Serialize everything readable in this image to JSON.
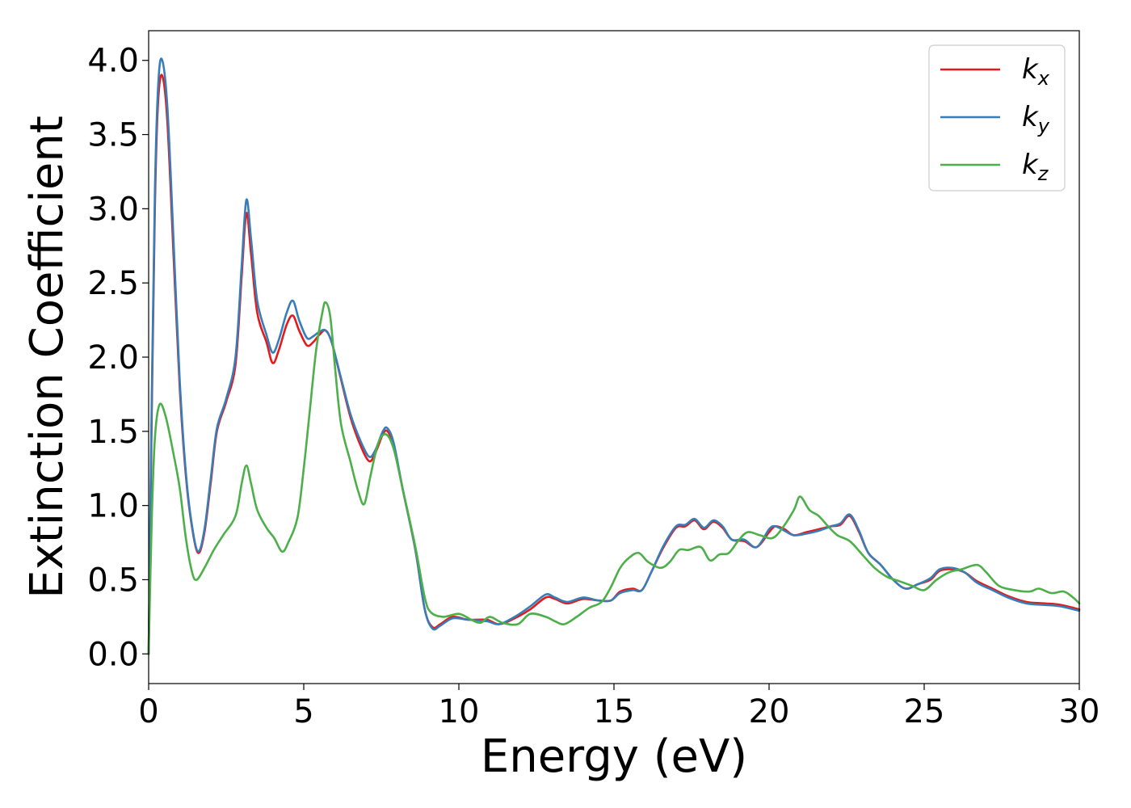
{
  "chart_data": {
    "type": "line",
    "title": "",
    "xlabel": "Energy (eV)",
    "ylabel": "Extinction Coefficient",
    "xlim": [
      0,
      30
    ],
    "ylim": [
      -0.2,
      4.2
    ],
    "xticks": [
      0,
      5,
      10,
      15,
      20,
      25,
      30
    ],
    "xtick_labels": [
      "0",
      "5",
      "10",
      "15",
      "20",
      "25",
      "30"
    ],
    "yticks": [
      0.0,
      0.5,
      1.0,
      1.5,
      2.0,
      2.5,
      3.0,
      3.5,
      4.0
    ],
    "ytick_labels": [
      "0.0",
      "0.5",
      "1.0",
      "1.5",
      "2.0",
      "2.5",
      "3.0",
      "3.5",
      "4.0"
    ],
    "grid": false,
    "legend_position": "top-right",
    "series": [
      {
        "name": "k_x",
        "label_base": "k",
        "label_sub": "x",
        "color": "#e41a1c",
        "points": [
          [
            0.0,
            0.0
          ],
          [
            0.1,
            1.6
          ],
          [
            0.2,
            3.0
          ],
          [
            0.3,
            3.7
          ],
          [
            0.43,
            3.9
          ],
          [
            0.6,
            3.6
          ],
          [
            0.8,
            2.7
          ],
          [
            1.0,
            1.8
          ],
          [
            1.2,
            1.2
          ],
          [
            1.4,
            0.85
          ],
          [
            1.6,
            0.68
          ],
          [
            1.8,
            0.82
          ],
          [
            2.0,
            1.15
          ],
          [
            2.2,
            1.5
          ],
          [
            2.5,
            1.7
          ],
          [
            2.8,
            1.95
          ],
          [
            3.0,
            2.55
          ],
          [
            3.15,
            2.97
          ],
          [
            3.3,
            2.7
          ],
          [
            3.5,
            2.3
          ],
          [
            3.8,
            2.1
          ],
          [
            4.0,
            1.96
          ],
          [
            4.2,
            2.05
          ],
          [
            4.45,
            2.22
          ],
          [
            4.65,
            2.28
          ],
          [
            4.85,
            2.18
          ],
          [
            5.1,
            2.08
          ],
          [
            5.3,
            2.1
          ],
          [
            5.5,
            2.15
          ],
          [
            5.7,
            2.18
          ],
          [
            5.9,
            2.1
          ],
          [
            6.2,
            1.85
          ],
          [
            6.5,
            1.6
          ],
          [
            6.8,
            1.42
          ],
          [
            7.1,
            1.3
          ],
          [
            7.3,
            1.35
          ],
          [
            7.55,
            1.48
          ],
          [
            7.7,
            1.5
          ],
          [
            7.9,
            1.4
          ],
          [
            8.2,
            1.1
          ],
          [
            8.6,
            0.7
          ],
          [
            8.9,
            0.3
          ],
          [
            9.15,
            0.18
          ],
          [
            9.4,
            0.2
          ],
          [
            9.8,
            0.25
          ],
          [
            10.3,
            0.23
          ],
          [
            10.9,
            0.23
          ],
          [
            11.3,
            0.2
          ],
          [
            11.8,
            0.24
          ],
          [
            12.3,
            0.3
          ],
          [
            12.8,
            0.38
          ],
          [
            13.1,
            0.37
          ],
          [
            13.5,
            0.34
          ],
          [
            14.0,
            0.37
          ],
          [
            14.5,
            0.36
          ],
          [
            14.9,
            0.36
          ],
          [
            15.2,
            0.42
          ],
          [
            15.6,
            0.44
          ],
          [
            15.9,
            0.43
          ],
          [
            16.2,
            0.55
          ],
          [
            16.6,
            0.72
          ],
          [
            17.0,
            0.85
          ],
          [
            17.3,
            0.86
          ],
          [
            17.6,
            0.9
          ],
          [
            17.9,
            0.84
          ],
          [
            18.2,
            0.89
          ],
          [
            18.5,
            0.85
          ],
          [
            18.8,
            0.77
          ],
          [
            19.2,
            0.76
          ],
          [
            19.6,
            0.72
          ],
          [
            20.0,
            0.82
          ],
          [
            20.2,
            0.86
          ],
          [
            20.5,
            0.84
          ],
          [
            20.8,
            0.8
          ],
          [
            21.2,
            0.82
          ],
          [
            21.6,
            0.84
          ],
          [
            22.0,
            0.86
          ],
          [
            22.3,
            0.87
          ],
          [
            22.6,
            0.93
          ],
          [
            22.9,
            0.82
          ],
          [
            23.2,
            0.68
          ],
          [
            23.6,
            0.6
          ],
          [
            24.0,
            0.5
          ],
          [
            24.4,
            0.44
          ],
          [
            24.8,
            0.47
          ],
          [
            25.2,
            0.5
          ],
          [
            25.5,
            0.56
          ],
          [
            25.9,
            0.57
          ],
          [
            26.3,
            0.55
          ],
          [
            26.7,
            0.49
          ],
          [
            27.2,
            0.44
          ],
          [
            27.7,
            0.39
          ],
          [
            28.3,
            0.35
          ],
          [
            28.9,
            0.34
          ],
          [
            29.4,
            0.33
          ],
          [
            30.0,
            0.3
          ]
        ]
      },
      {
        "name": "k_y",
        "label_base": "k",
        "label_sub": "y",
        "color": "#377eb8",
        "points": [
          [
            0.0,
            0.0
          ],
          [
            0.1,
            1.7
          ],
          [
            0.2,
            3.1
          ],
          [
            0.3,
            3.8
          ],
          [
            0.42,
            4.01
          ],
          [
            0.6,
            3.7
          ],
          [
            0.8,
            2.8
          ],
          [
            1.0,
            1.85
          ],
          [
            1.2,
            1.22
          ],
          [
            1.4,
            0.86
          ],
          [
            1.6,
            0.69
          ],
          [
            1.8,
            0.84
          ],
          [
            2.0,
            1.18
          ],
          [
            2.2,
            1.52
          ],
          [
            2.5,
            1.72
          ],
          [
            2.8,
            2.0
          ],
          [
            3.0,
            2.62
          ],
          [
            3.15,
            3.06
          ],
          [
            3.3,
            2.8
          ],
          [
            3.5,
            2.38
          ],
          [
            3.8,
            2.15
          ],
          [
            4.0,
            2.03
          ],
          [
            4.2,
            2.12
          ],
          [
            4.45,
            2.3
          ],
          [
            4.65,
            2.38
          ],
          [
            4.85,
            2.25
          ],
          [
            5.1,
            2.13
          ],
          [
            5.3,
            2.14
          ],
          [
            5.5,
            2.17
          ],
          [
            5.7,
            2.18
          ],
          [
            5.9,
            2.1
          ],
          [
            6.2,
            1.86
          ],
          [
            6.5,
            1.62
          ],
          [
            6.8,
            1.45
          ],
          [
            7.1,
            1.33
          ],
          [
            7.3,
            1.37
          ],
          [
            7.55,
            1.5
          ],
          [
            7.7,
            1.52
          ],
          [
            7.9,
            1.42
          ],
          [
            8.2,
            1.1
          ],
          [
            8.6,
            0.7
          ],
          [
            8.9,
            0.3
          ],
          [
            9.15,
            0.17
          ],
          [
            9.4,
            0.19
          ],
          [
            9.8,
            0.24
          ],
          [
            10.3,
            0.23
          ],
          [
            10.9,
            0.22
          ],
          [
            11.3,
            0.2
          ],
          [
            11.8,
            0.25
          ],
          [
            12.3,
            0.32
          ],
          [
            12.8,
            0.4
          ],
          [
            13.1,
            0.38
          ],
          [
            13.5,
            0.35
          ],
          [
            14.0,
            0.38
          ],
          [
            14.5,
            0.36
          ],
          [
            14.9,
            0.36
          ],
          [
            15.2,
            0.41
          ],
          [
            15.6,
            0.43
          ],
          [
            15.9,
            0.43
          ],
          [
            16.2,
            0.55
          ],
          [
            16.6,
            0.73
          ],
          [
            17.0,
            0.86
          ],
          [
            17.3,
            0.87
          ],
          [
            17.6,
            0.91
          ],
          [
            17.9,
            0.85
          ],
          [
            18.2,
            0.9
          ],
          [
            18.5,
            0.86
          ],
          [
            18.8,
            0.77
          ],
          [
            19.2,
            0.77
          ],
          [
            19.6,
            0.72
          ],
          [
            20.0,
            0.84
          ],
          [
            20.2,
            0.86
          ],
          [
            20.5,
            0.83
          ],
          [
            20.8,
            0.8
          ],
          [
            21.2,
            0.81
          ],
          [
            21.6,
            0.83
          ],
          [
            22.0,
            0.86
          ],
          [
            22.3,
            0.88
          ],
          [
            22.6,
            0.94
          ],
          [
            22.9,
            0.83
          ],
          [
            23.2,
            0.68
          ],
          [
            23.6,
            0.6
          ],
          [
            24.0,
            0.5
          ],
          [
            24.4,
            0.44
          ],
          [
            24.8,
            0.47
          ],
          [
            25.2,
            0.51
          ],
          [
            25.5,
            0.57
          ],
          [
            25.9,
            0.58
          ],
          [
            26.3,
            0.55
          ],
          [
            26.7,
            0.48
          ],
          [
            27.2,
            0.43
          ],
          [
            27.7,
            0.38
          ],
          [
            28.3,
            0.34
          ],
          [
            28.9,
            0.33
          ],
          [
            29.4,
            0.32
          ],
          [
            30.0,
            0.29
          ]
        ]
      },
      {
        "name": "k_z",
        "label_base": "k",
        "label_sub": "z",
        "color": "#4daf4a",
        "points": [
          [
            0.0,
            0.0
          ],
          [
            0.1,
            0.9
          ],
          [
            0.2,
            1.45
          ],
          [
            0.35,
            1.68
          ],
          [
            0.55,
            1.6
          ],
          [
            0.8,
            1.35
          ],
          [
            1.0,
            1.12
          ],
          [
            1.2,
            0.78
          ],
          [
            1.4,
            0.55
          ],
          [
            1.55,
            0.5
          ],
          [
            1.8,
            0.58
          ],
          [
            2.1,
            0.7
          ],
          [
            2.4,
            0.8
          ],
          [
            2.8,
            0.93
          ],
          [
            3.0,
            1.15
          ],
          [
            3.15,
            1.27
          ],
          [
            3.3,
            1.15
          ],
          [
            3.5,
            0.97
          ],
          [
            3.8,
            0.85
          ],
          [
            4.05,
            0.78
          ],
          [
            4.3,
            0.69
          ],
          [
            4.5,
            0.75
          ],
          [
            4.8,
            0.92
          ],
          [
            5.0,
            1.25
          ],
          [
            5.2,
            1.65
          ],
          [
            5.4,
            2.05
          ],
          [
            5.6,
            2.3
          ],
          [
            5.7,
            2.37
          ],
          [
            5.85,
            2.28
          ],
          [
            6.0,
            1.95
          ],
          [
            6.2,
            1.55
          ],
          [
            6.5,
            1.3
          ],
          [
            6.75,
            1.1
          ],
          [
            6.95,
            1.01
          ],
          [
            7.15,
            1.2
          ],
          [
            7.4,
            1.42
          ],
          [
            7.65,
            1.48
          ],
          [
            7.9,
            1.38
          ],
          [
            8.2,
            1.1
          ],
          [
            8.6,
            0.72
          ],
          [
            8.9,
            0.38
          ],
          [
            9.1,
            0.28
          ],
          [
            9.5,
            0.25
          ],
          [
            10.0,
            0.27
          ],
          [
            10.4,
            0.23
          ],
          [
            10.7,
            0.21
          ],
          [
            11.0,
            0.25
          ],
          [
            11.4,
            0.21
          ],
          [
            11.9,
            0.2
          ],
          [
            12.3,
            0.27
          ],
          [
            12.8,
            0.25
          ],
          [
            13.1,
            0.22
          ],
          [
            13.4,
            0.2
          ],
          [
            13.8,
            0.25
          ],
          [
            14.2,
            0.31
          ],
          [
            14.6,
            0.35
          ],
          [
            14.9,
            0.45
          ],
          [
            15.2,
            0.58
          ],
          [
            15.5,
            0.65
          ],
          [
            15.8,
            0.68
          ],
          [
            16.1,
            0.62
          ],
          [
            16.5,
            0.58
          ],
          [
            16.8,
            0.62
          ],
          [
            17.1,
            0.7
          ],
          [
            17.4,
            0.7
          ],
          [
            17.8,
            0.72
          ],
          [
            18.1,
            0.63
          ],
          [
            18.4,
            0.67
          ],
          [
            18.7,
            0.68
          ],
          [
            19.0,
            0.76
          ],
          [
            19.3,
            0.82
          ],
          [
            19.7,
            0.8
          ],
          [
            20.1,
            0.78
          ],
          [
            20.4,
            0.84
          ],
          [
            20.8,
            0.97
          ],
          [
            21.0,
            1.06
          ],
          [
            21.3,
            0.97
          ],
          [
            21.6,
            0.93
          ],
          [
            21.9,
            0.86
          ],
          [
            22.2,
            0.8
          ],
          [
            22.6,
            0.76
          ],
          [
            23.0,
            0.67
          ],
          [
            23.4,
            0.58
          ],
          [
            23.8,
            0.52
          ],
          [
            24.2,
            0.49
          ],
          [
            24.6,
            0.46
          ],
          [
            25.0,
            0.43
          ],
          [
            25.4,
            0.5
          ],
          [
            25.8,
            0.55
          ],
          [
            26.2,
            0.57
          ],
          [
            26.7,
            0.6
          ],
          [
            27.0,
            0.55
          ],
          [
            27.4,
            0.46
          ],
          [
            27.9,
            0.43
          ],
          [
            28.4,
            0.42
          ],
          [
            28.7,
            0.44
          ],
          [
            29.1,
            0.41
          ],
          [
            29.5,
            0.42
          ],
          [
            29.8,
            0.38
          ],
          [
            30.0,
            0.34
          ]
        ]
      }
    ]
  }
}
